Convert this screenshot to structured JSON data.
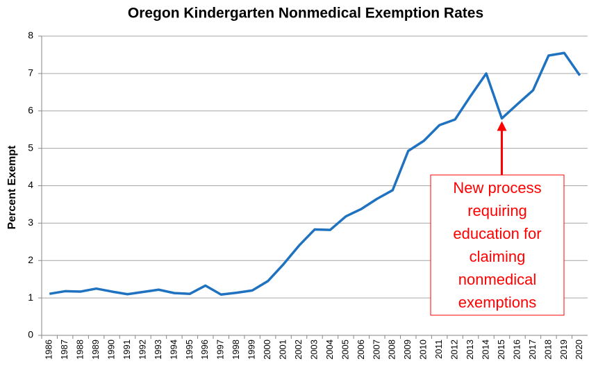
{
  "chart_data": {
    "type": "line",
    "title": "Oregon Kindergarten Nonmedical Exemption Rates",
    "y_label": "Percent  Exempt",
    "categories": [
      "1986",
      "1987",
      "1988",
      "1989",
      "1990",
      "1991",
      "1992",
      "1993",
      "1994",
      "1995",
      "1996",
      "1997",
      "1998",
      "1999",
      "2000",
      "2001",
      "2002",
      "2003",
      "2004",
      "2005",
      "2006",
      "2007",
      "2008",
      "2009",
      "2010",
      "2011",
      "2012",
      "2013",
      "2014",
      "2015",
      "2016",
      "2017",
      "2018",
      "2019",
      "2020"
    ],
    "values": [
      1.11,
      1.18,
      1.17,
      1.25,
      1.17,
      1.1,
      1.16,
      1.22,
      1.13,
      1.11,
      1.33,
      1.09,
      1.14,
      1.2,
      1.45,
      1.9,
      2.4,
      2.83,
      2.82,
      3.18,
      3.38,
      3.65,
      3.88,
      4.93,
      5.2,
      5.62,
      5.77,
      6.4,
      7.0,
      5.8,
      6.18,
      6.55,
      7.48,
      7.55,
      6.95
    ],
    "color": "#1f72c0",
    "ylim": [
      0,
      8
    ],
    "yticks": [
      0,
      1,
      2,
      3,
      4,
      5,
      6,
      7,
      8
    ],
    "grid": true,
    "annotation": {
      "lines": [
        "New process",
        "requiring",
        "education for",
        "claiming",
        "nonmedical",
        "exemptions"
      ],
      "category": "2015",
      "color": "#ff0000"
    }
  }
}
